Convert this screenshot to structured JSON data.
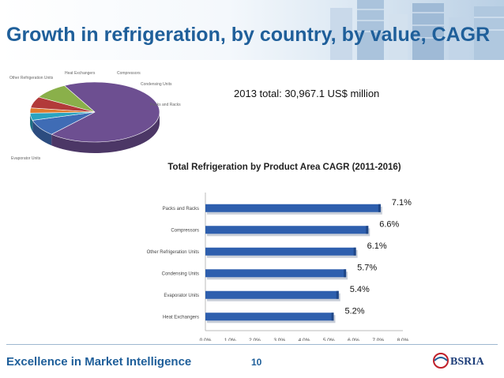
{
  "slide": {
    "title": "Growth in refrigeration, by country, by value, CAGR",
    "total_note": "2013 total: 30,967.1 US$ million",
    "footer_text": "Excellence in Market Intelligence",
    "page_number": "10",
    "logo_text": "BSRIA"
  },
  "colors": {
    "title": "#1f5f9a",
    "bar": "#2e5fae",
    "pie_evaporator": "#6d4f91",
    "pie_heat_exchangers": "#3b6db3",
    "pie_compressors": "#2aa3c0",
    "pie_condensing": "#b23a3a",
    "pie_packs": "#8ab04a"
  },
  "chart_data": [
    {
      "type": "pie",
      "title": "",
      "slices": [
        {
          "label": "Evaporator Units",
          "color": "#6d4f91"
        },
        {
          "label": "Other Refrigeration Units",
          "color": "#3f6cb5"
        },
        {
          "label": "Heat Exchangers",
          "color": "#2aa3c0"
        },
        {
          "label": "Compressors",
          "color": "#e07a2e"
        },
        {
          "label": "Condensing Units",
          "color": "#b23a3a"
        },
        {
          "label": "Packs and Racks",
          "color": "#8ab04a"
        }
      ]
    },
    {
      "type": "bar",
      "orientation": "horizontal",
      "title": "Total Refrigeration by Product Area CAGR (2011-2016)",
      "categories": [
        "Packs and Racks",
        "Compressors",
        "Other Refrigeration Units",
        "Condensing Units",
        "Evaporator Units",
        "Heat Exchangers"
      ],
      "values": [
        7.1,
        6.6,
        6.1,
        5.7,
        5.4,
        5.2
      ],
      "value_labels": [
        "7.1%",
        "6.6%",
        "6.1%",
        "5.7%",
        "5.4%",
        "5.2%"
      ],
      "x_ticks": [
        "0.0%",
        "1.0%",
        "2.0%",
        "3.0%",
        "4.0%",
        "5.0%",
        "6.0%",
        "7.0%",
        "8.0%"
      ],
      "xlim": [
        0,
        8
      ],
      "xlabel": "",
      "ylabel": "",
      "grid": false,
      "legend": "none"
    }
  ]
}
